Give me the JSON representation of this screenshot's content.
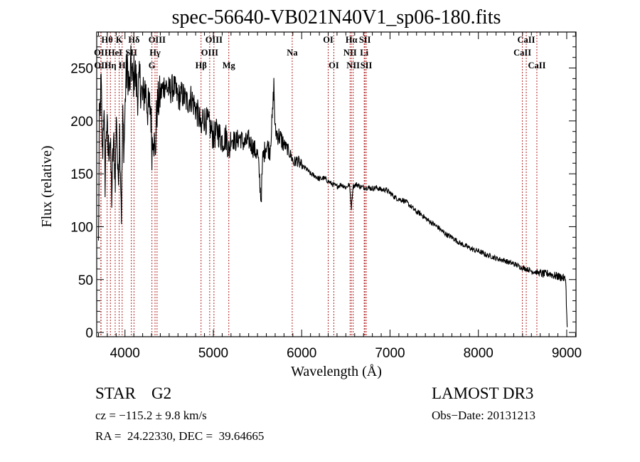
{
  "chart_data": {
    "type": "line",
    "title": "spec-56640-VB021N40V1_sp06-180.fits",
    "xlabel": "Wavelength (Å)",
    "ylabel": "Flux (relative)",
    "xlim": [
      3680,
      9105
    ],
    "ylim": [
      -4,
      284
    ],
    "xticks": [
      4000,
      5000,
      6000,
      7000,
      8000,
      9000
    ],
    "xtick_labels": [
      "4000",
      "5000",
      "6000",
      "7000",
      "8000",
      "9000"
    ],
    "yticks": [
      0,
      50,
      100,
      150,
      200,
      250
    ],
    "ytick_labels": [
      "0",
      "50",
      "100",
      "150",
      "200",
      "250"
    ],
    "grid": false,
    "legend": "none",
    "line_color": "#000000",
    "marker_color": "#b22222",
    "series": [
      {
        "name": "spectrum",
        "anchors": [
          [
            3700,
            80
          ],
          [
            3710,
            195
          ],
          [
            3730,
            235
          ],
          [
            3745,
            165
          ],
          [
            3760,
            215
          ],
          [
            3775,
            145
          ],
          [
            3790,
            200
          ],
          [
            3810,
            170
          ],
          [
            3830,
            185
          ],
          [
            3850,
            130
          ],
          [
            3870,
            180
          ],
          [
            3890,
            150
          ],
          [
            3905,
            210
          ],
          [
            3920,
            140
          ],
          [
            3940,
            190
          ],
          [
            3960,
            115
          ],
          [
            3975,
            200
          ],
          [
            3990,
            175
          ],
          [
            4010,
            240
          ],
          [
            4030,
            250
          ],
          [
            4050,
            228
          ],
          [
            4070,
            255
          ],
          [
            4090,
            235
          ],
          [
            4110,
            250
          ],
          [
            4140,
            225
          ],
          [
            4170,
            238
          ],
          [
            4200,
            220
          ],
          [
            4230,
            232
          ],
          [
            4260,
            210
          ],
          [
            4290,
            215
          ],
          [
            4305,
            175
          ],
          [
            4320,
            195
          ],
          [
            4340,
            165
          ],
          [
            4360,
            210
          ],
          [
            4400,
            225
          ],
          [
            4450,
            235
          ],
          [
            4500,
            228
          ],
          [
            4550,
            232
          ],
          [
            4600,
            222
          ],
          [
            4650,
            225
          ],
          [
            4700,
            218
          ],
          [
            4750,
            222
          ],
          [
            4800,
            212
          ],
          [
            4850,
            200
          ],
          [
            4862,
            185
          ],
          [
            4880,
            205
          ],
          [
            4920,
            200
          ],
          [
            4960,
            195
          ],
          [
            5000,
            185
          ],
          [
            5050,
            190
          ],
          [
            5100,
            182
          ],
          [
            5150,
            185
          ],
          [
            5180,
            170
          ],
          [
            5200,
            185
          ],
          [
            5250,
            180
          ],
          [
            5300,
            185
          ],
          [
            5350,
            178
          ],
          [
            5400,
            182
          ],
          [
            5450,
            175
          ],
          [
            5500,
            168
          ],
          [
            5520,
            150
          ],
          [
            5540,
            125
          ],
          [
            5560,
            165
          ],
          [
            5600,
            178
          ],
          [
            5640,
            172
          ],
          [
            5670,
            205
          ],
          [
            5685,
            235
          ],
          [
            5700,
            190
          ],
          [
            5750,
            185
          ],
          [
            5800,
            178
          ],
          [
            5850,
            172
          ],
          [
            5890,
            165
          ],
          [
            5910,
            160
          ],
          [
            5950,
            163
          ],
          [
            6000,
            157
          ],
          [
            6050,
            155
          ],
          [
            6100,
            150
          ],
          [
            6150,
            148
          ],
          [
            6200,
            145
          ],
          [
            6250,
            146
          ],
          [
            6300,
            143
          ],
          [
            6350,
            140
          ],
          [
            6400,
            138
          ],
          [
            6450,
            140
          ],
          [
            6500,
            137
          ],
          [
            6540,
            140
          ],
          [
            6563,
            118
          ],
          [
            6580,
            138
          ],
          [
            6620,
            140
          ],
          [
            6660,
            138
          ],
          [
            6700,
            137
          ],
          [
            6750,
            137
          ],
          [
            6800,
            136
          ],
          [
            6850,
            137
          ],
          [
            6900,
            135
          ],
          [
            6950,
            135
          ],
          [
            7000,
            132
          ],
          [
            7050,
            128
          ],
          [
            7100,
            126
          ],
          [
            7150,
            125
          ],
          [
            7200,
            122
          ],
          [
            7250,
            118
          ],
          [
            7300,
            114
          ],
          [
            7350,
            112
          ],
          [
            7400,
            108
          ],
          [
            7450,
            105
          ],
          [
            7500,
            102
          ],
          [
            7550,
            99
          ],
          [
            7600,
            95
          ],
          [
            7650,
            92
          ],
          [
            7700,
            90
          ],
          [
            7750,
            87
          ],
          [
            7800,
            84
          ],
          [
            7850,
            82
          ],
          [
            7900,
            80
          ],
          [
            7950,
            78
          ],
          [
            8000,
            77
          ],
          [
            8050,
            75
          ],
          [
            8100,
            73
          ],
          [
            8150,
            72
          ],
          [
            8200,
            70
          ],
          [
            8250,
            69
          ],
          [
            8300,
            68
          ],
          [
            8350,
            66
          ],
          [
            8400,
            65
          ],
          [
            8450,
            63
          ],
          [
            8500,
            61
          ],
          [
            8550,
            60
          ],
          [
            8600,
            58
          ],
          [
            8650,
            57
          ],
          [
            8700,
            56
          ],
          [
            8750,
            55
          ],
          [
            8800,
            56
          ],
          [
            8850,
            54
          ],
          [
            8900,
            53
          ],
          [
            8950,
            52
          ],
          [
            8990,
            50
          ],
          [
            9000,
            15
          ],
          [
            9005,
            5
          ]
        ]
      }
    ],
    "line_markers": [
      {
        "label": "Hθ",
        "wave": 3798,
        "row": 0
      },
      {
        "label": "K",
        "wave": 3934,
        "row": 0
      },
      {
        "label": "Hδ",
        "wave": 4102,
        "row": 0
      },
      {
        "label": "OIII",
        "wave": 4363,
        "row": 0
      },
      {
        "label": "OIII",
        "wave": 5007,
        "row": 0
      },
      {
        "label": "OI",
        "wave": 6300,
        "row": 0
      },
      {
        "label": "Hα",
        "wave": 6563,
        "row": 0
      },
      {
        "label": "SII",
        "wave": 6716,
        "row": 0
      },
      {
        "label": "CaII",
        "wave": 8542,
        "row": 0
      },
      {
        "label": "OII",
        "wave": 3727,
        "row": 1
      },
      {
        "label": "HeI",
        "wave": 3889,
        "row": 1
      },
      {
        "label": "SII",
        "wave": 4072,
        "row": 1
      },
      {
        "label": "Hγ",
        "wave": 4340,
        "row": 1
      },
      {
        "label": "OIII",
        "wave": 4959,
        "row": 1
      },
      {
        "label": "Na",
        "wave": 5893,
        "row": 1
      },
      {
        "label": "NII",
        "wave": 6548,
        "row": 1
      },
      {
        "label": "Li",
        "wave": 6708,
        "row": 1
      },
      {
        "label": "CaII",
        "wave": 8498,
        "row": 1
      },
      {
        "label": "OII",
        "wave": 3729,
        "row": 2
      },
      {
        "label": "Hη",
        "wave": 3835,
        "row": 2
      },
      {
        "label": "H",
        "wave": 3968,
        "row": 2
      },
      {
        "label": "G",
        "wave": 4305,
        "row": 2
      },
      {
        "label": "Hβ",
        "wave": 4861,
        "row": 2
      },
      {
        "label": "Mg",
        "wave": 5175,
        "row": 2
      },
      {
        "label": "OI",
        "wave": 6364,
        "row": 2
      },
      {
        "label": "NII",
        "wave": 6583,
        "row": 2
      },
      {
        "label": "SII",
        "wave": 6731,
        "row": 2
      },
      {
        "label": "CaII",
        "wave": 8662,
        "row": 2
      }
    ]
  },
  "info": {
    "object_class": "STAR",
    "subclass": "G2",
    "survey": "LAMOST DR3",
    "redshift": "cz = −115.2 ± 9.8 km/s",
    "obs_date": "Obs−Date: 20131213",
    "coords": "RA =  24.22330, DEC =  39.64665"
  }
}
